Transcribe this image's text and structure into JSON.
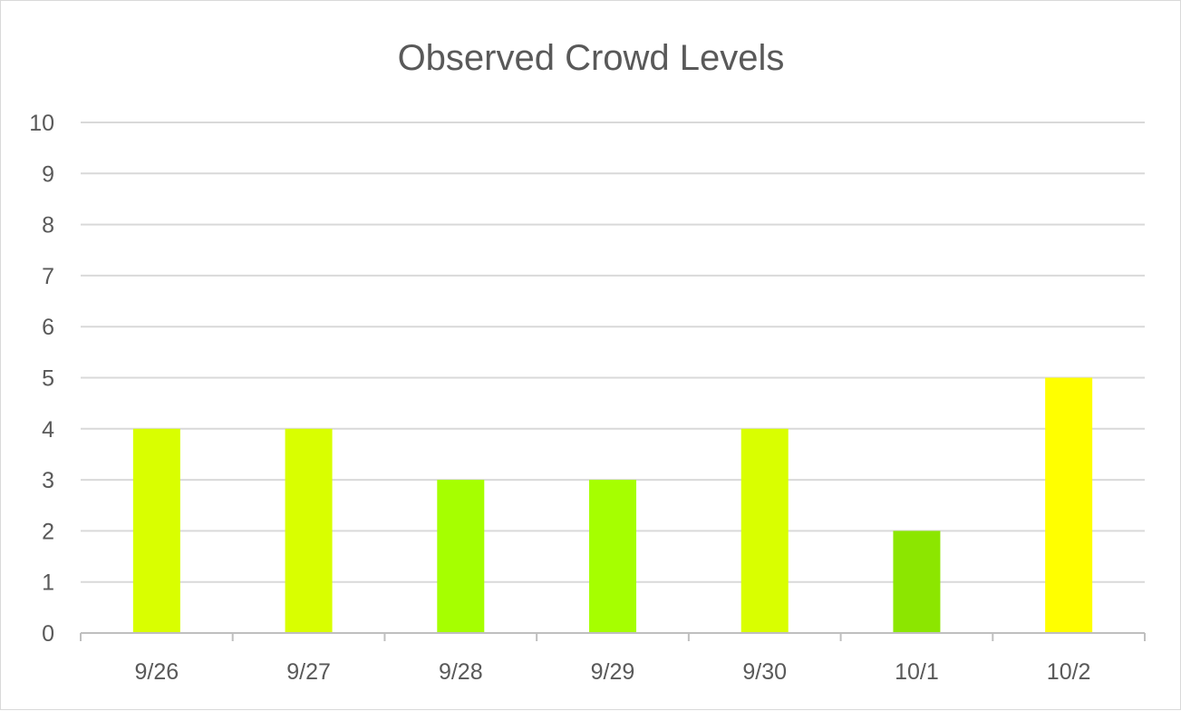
{
  "chart_data": {
    "type": "bar",
    "title": "Observed Crowd Levels",
    "xlabel": "",
    "ylabel": "",
    "categories": [
      "9/26",
      "9/27",
      "9/28",
      "9/29",
      "9/30",
      "10/1",
      "10/2"
    ],
    "values": [
      4,
      4,
      3,
      3,
      4,
      2,
      5
    ],
    "bar_colors": [
      "#d9ff00",
      "#d9ff00",
      "#a6ff00",
      "#a6ff00",
      "#d9ff00",
      "#8ce600",
      "#ffff00"
    ],
    "ylim": [
      0,
      10
    ],
    "yticks": [
      "0",
      "1",
      "2",
      "3",
      "4",
      "5",
      "6",
      "7",
      "8",
      "9",
      "10"
    ],
    "grid": true,
    "legend": "none",
    "colors": {
      "gridline": "#d9d9d9",
      "axis": "#bfbfbf",
      "text": "#595959"
    }
  }
}
